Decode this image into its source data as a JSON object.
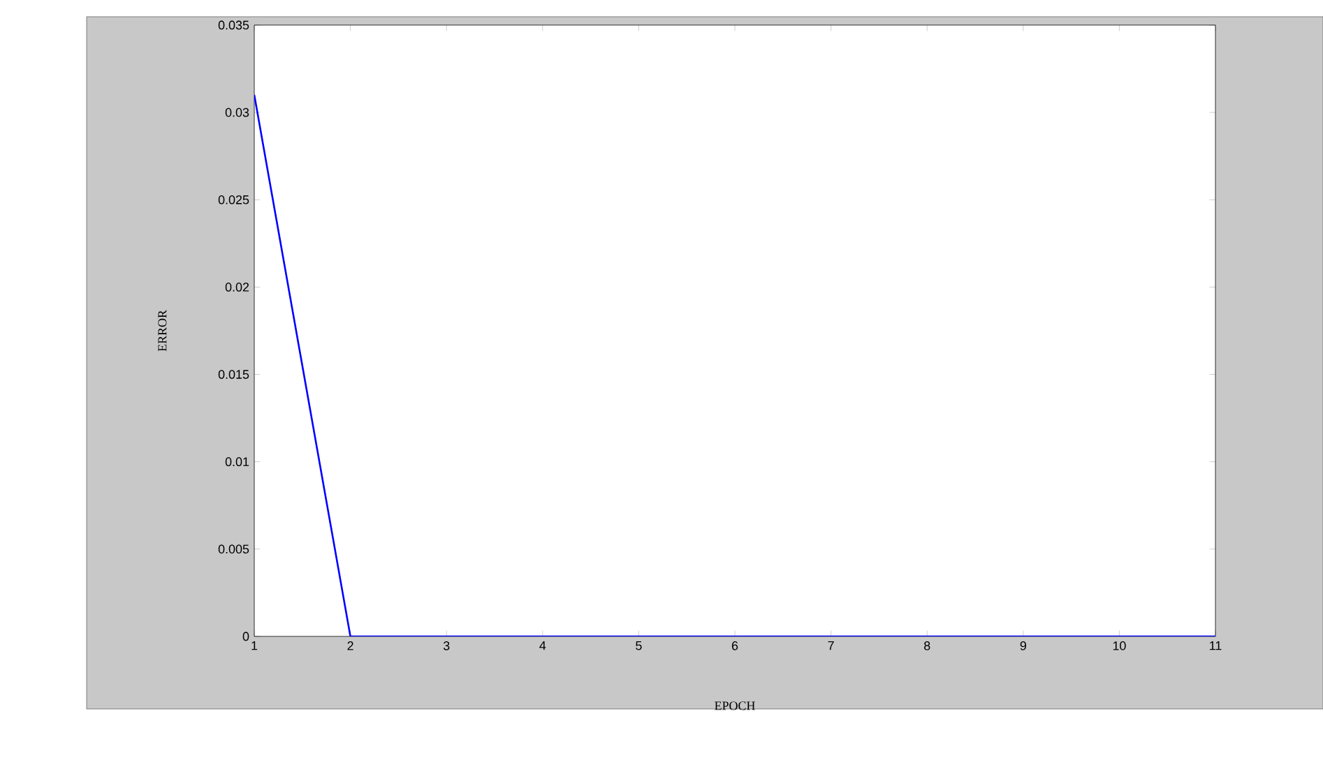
{
  "chart_data": {
    "type": "line",
    "xlabel": "EPOCH",
    "ylabel": "ERROR",
    "x": [
      1,
      2,
      3,
      4,
      5,
      6,
      7,
      8,
      9,
      10,
      11
    ],
    "series": [
      {
        "color": "#0000ff",
        "values": [
          0.031,
          0,
          0,
          0,
          0,
          0,
          0,
          0,
          0,
          0,
          0
        ]
      }
    ],
    "xlim": [
      1,
      11
    ],
    "xticks": [
      1,
      2,
      3,
      4,
      5,
      6,
      7,
      8,
      9,
      10,
      11
    ],
    "ylim": [
      0,
      0.035
    ],
    "yticks": [
      0,
      0.005,
      0.01,
      0.015,
      0.02,
      0.025,
      0.03,
      0.035
    ],
    "grid": false,
    "marker": "none",
    "line_style": "solid"
  }
}
